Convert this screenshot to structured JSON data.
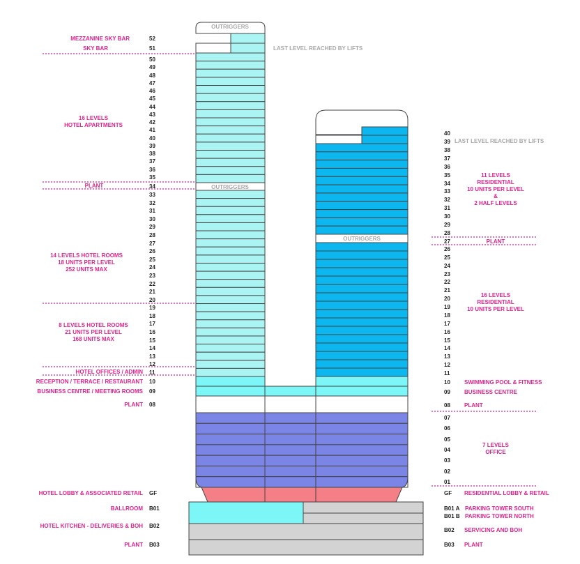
{
  "colors": {
    "pink": "#e0228a",
    "hotel_tower": "#aaf4f4",
    "residential_tower": "#0cb7f0",
    "podium_cyan": "#7cf6f6",
    "office": "#7b85e6",
    "lobby": "#f57f86",
    "basement": "#d3d3d3",
    "line": "#444444"
  },
  "left_labels": {
    "mezzanine_sky_bar": "MEZZANINE SKY BAR",
    "sky_bar": "SKY BAR",
    "hotel_apartments": [
      "16 LEVELS",
      "HOTEL APARTMENTS"
    ],
    "plant_34": "PLANT",
    "hotel_rooms_14": [
      "14 LEVELS HOTEL ROOMS",
      "18 UNITS PER LEVEL",
      "252 UNITS MAX"
    ],
    "hotel_rooms_8": [
      "8 LEVELS HOTEL ROOMS",
      "21 UNITS PER LEVEL",
      "168 UNITS MAX"
    ],
    "hotel_offices": "HOTEL OFFICES / ADMIN",
    "reception": "RECEPTION / TERRACE / RESTAURANT",
    "business_centre": "BUSINESS CENTRE / MEETING ROOMS",
    "plant_08": "PLANT",
    "hotel_lobby": "HOTEL LOBBY & ASSOCIATED RETAIL",
    "ballroom": "BALLROOM",
    "kitchen": "HOTEL  KITCHEN - DELIVERIES & BOH",
    "plant_b03": "PLANT"
  },
  "right_labels": {
    "residential_11": [
      "11 LEVELS",
      "RESIDENTIAL",
      "10 UNITS PER LEVEL",
      "&",
      "2 HALF LEVELS"
    ],
    "plant_27": "PLANT",
    "residential_16": [
      "16 LEVELS",
      "RESIDENTIAL",
      "10 UNITS PER LEVEL"
    ],
    "swimming_pool": "SWIMMING POOL & FITNESS",
    "business_centre": "BUSINESS CENTRE",
    "plant_08": "PLANT",
    "office": [
      "7 LEVELS",
      "OFFICE"
    ],
    "residential_lobby": "RESIDENTIAL LOBBY & RETAIL",
    "parking_south": "PARKING TOWER SOUTH",
    "parking_north": "PARKING TOWER NORTH",
    "servicing": "SERVICING AND BOH",
    "plant_b03": "PLANT"
  },
  "notes": {
    "outriggers": "OUTRIGGERS",
    "last_level_lifts": "LAST LEVEL REACHED BY LIFTS"
  },
  "left_levels": [
    "52",
    "51",
    "50",
    "49",
    "48",
    "47",
    "46",
    "45",
    "44",
    "43",
    "42",
    "41",
    "40",
    "39",
    "38",
    "37",
    "36",
    "35",
    "34",
    "33",
    "32",
    "31",
    "30",
    "29",
    "28",
    "27",
    "26",
    "25",
    "24",
    "23",
    "22",
    "21",
    "20",
    "19",
    "18",
    "17",
    "16",
    "15",
    "14",
    "13",
    "12",
    "11",
    "10",
    "09",
    "08",
    "GF",
    "B01",
    "B02",
    "B03"
  ],
  "right_levels": [
    "40",
    "39",
    "38",
    "37",
    "36",
    "35",
    "34",
    "33",
    "32",
    "31",
    "30",
    "29",
    "28",
    "27",
    "26",
    "25",
    "24",
    "23",
    "22",
    "21",
    "20",
    "19",
    "18",
    "17",
    "16",
    "15",
    "14",
    "13",
    "12",
    "11",
    "10",
    "09",
    "08",
    "07",
    "06",
    "05",
    "04",
    "03",
    "02",
    "01",
    "GF",
    "B01 A",
    "B01 B",
    "B02",
    "B03"
  ]
}
